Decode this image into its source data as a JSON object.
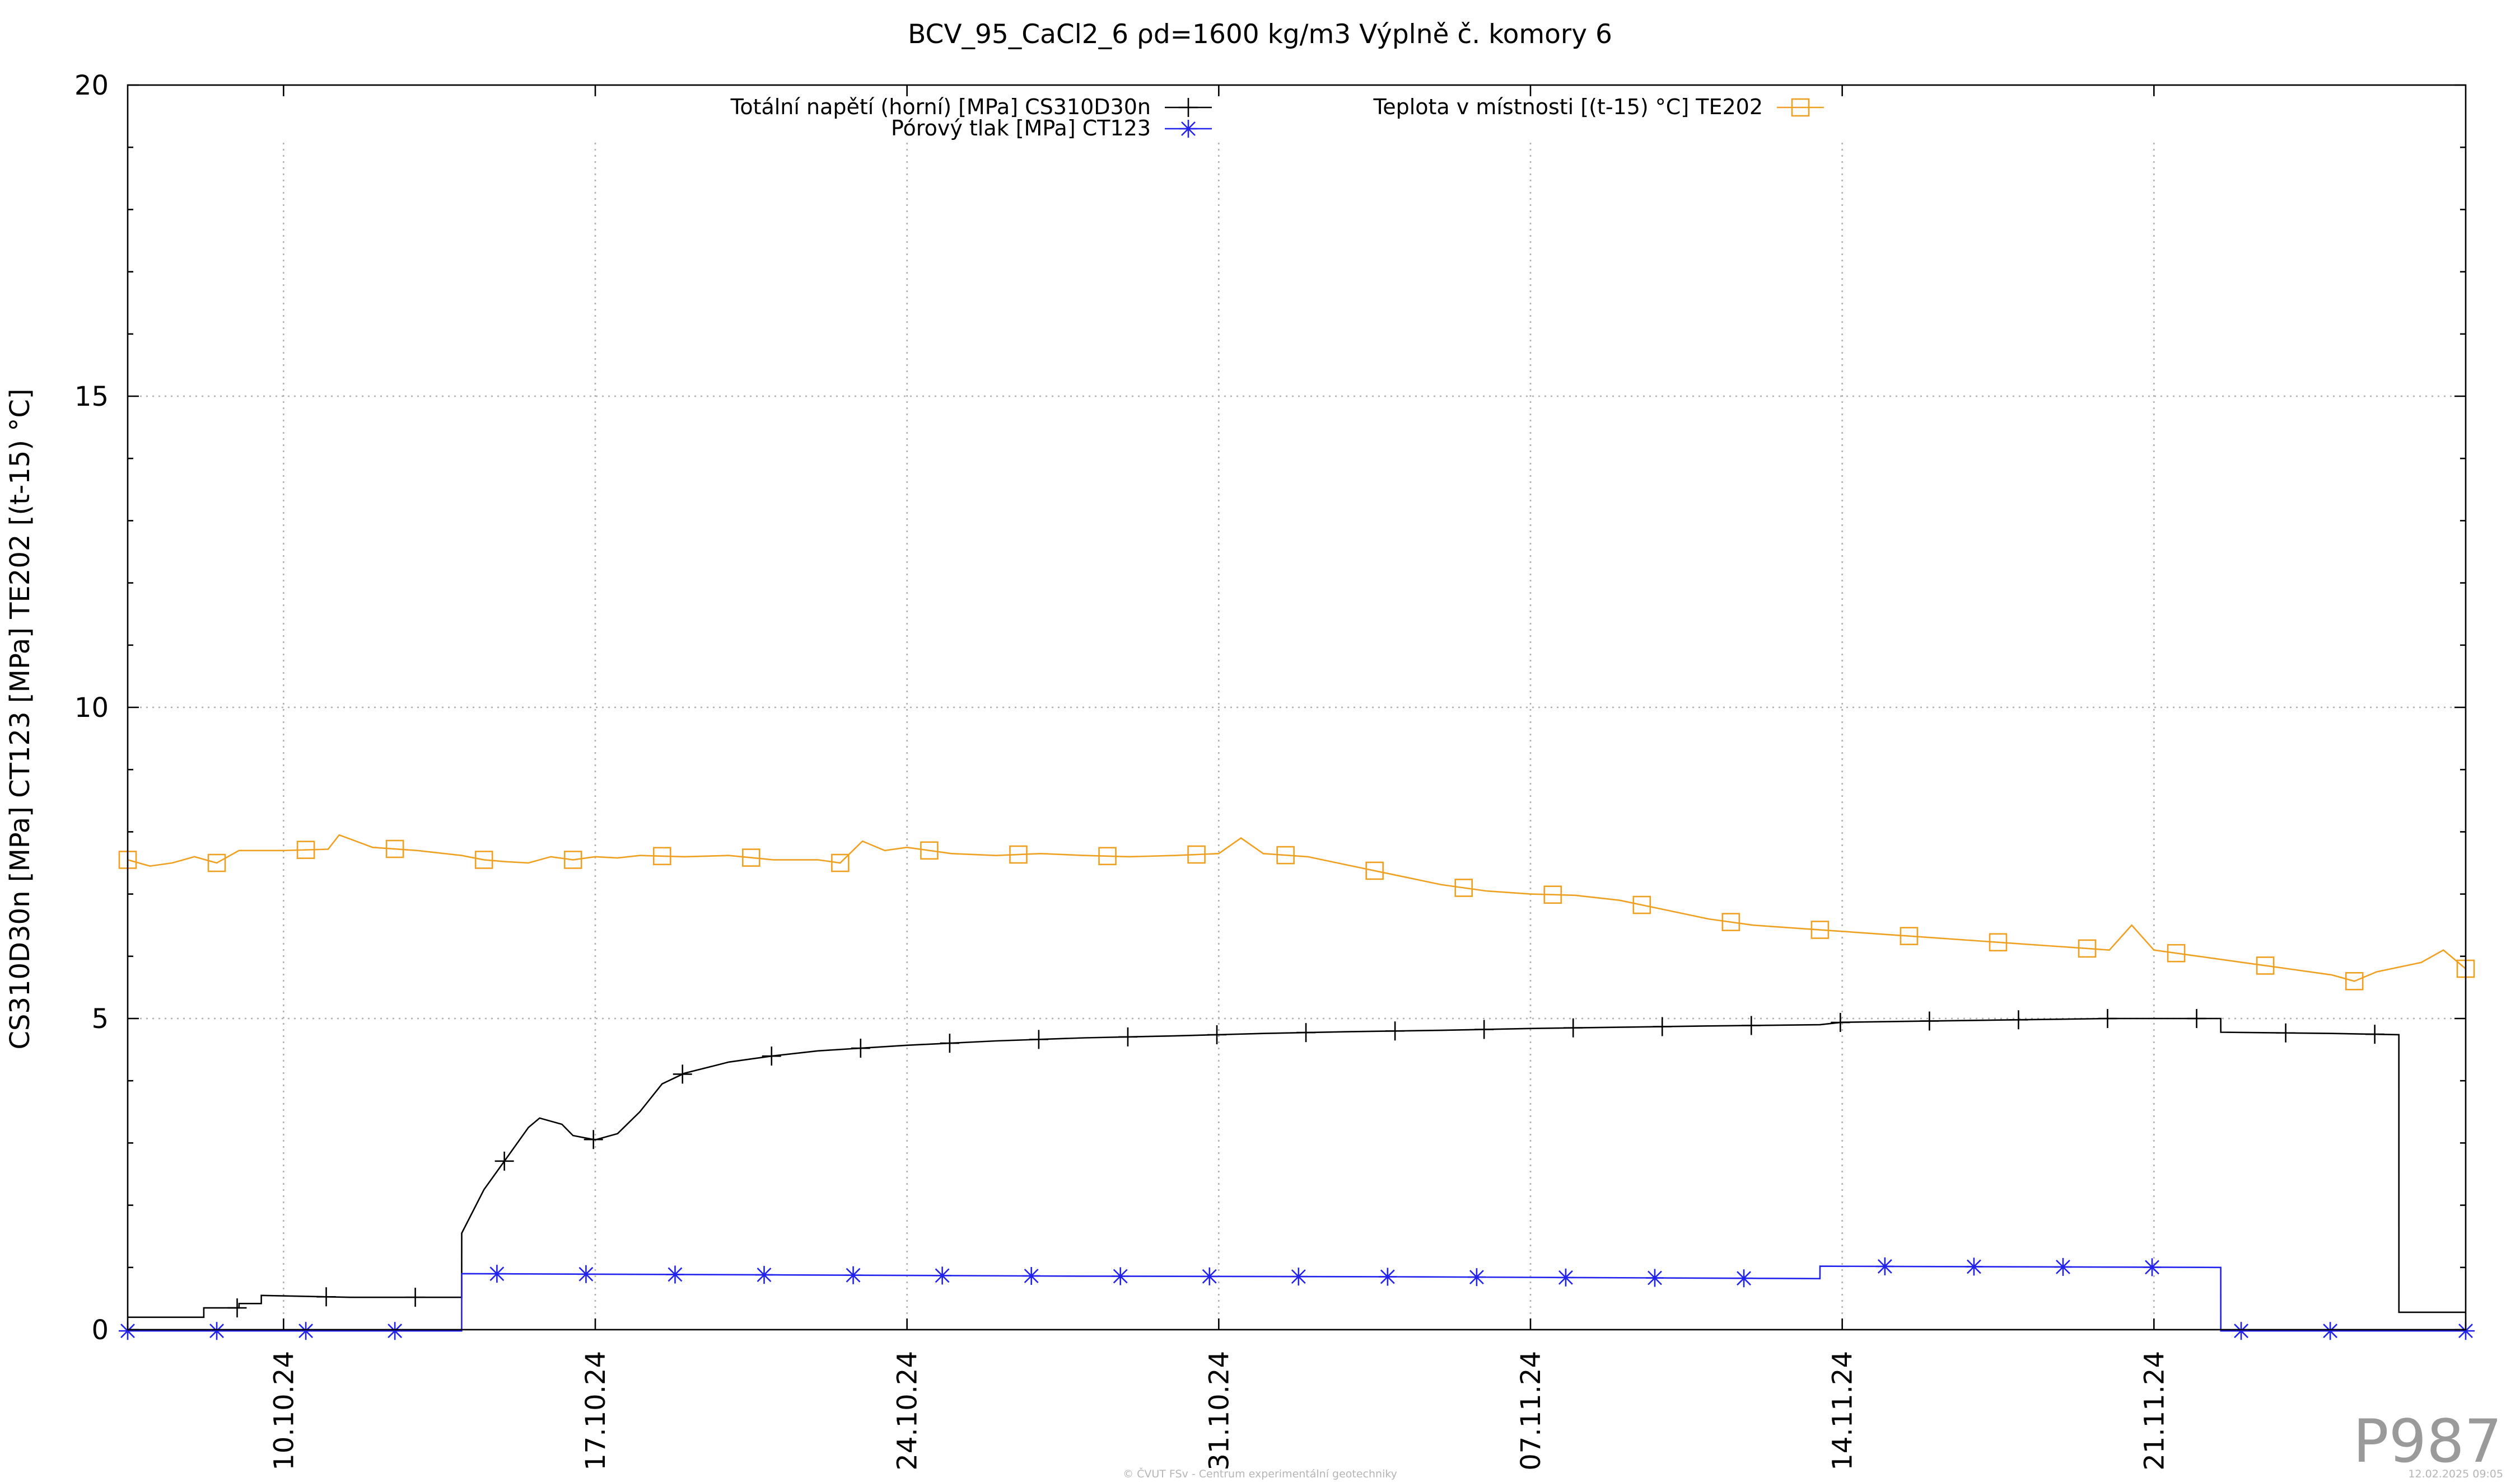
{
  "chart_data": {
    "type": "line",
    "title": "BCV_95_CaCl2_6 ρd=1600 kg/m3 Výplně č. komory 6",
    "ylabel": "CS310D30n [MPa] CT123 [MPa] TE202 [(t-15) °C]",
    "xlabel": "",
    "ylim": [
      0,
      20
    ],
    "xlim": [
      "2024-10-06T12:00",
      "2024-11-28T00:00"
    ],
    "y_ticks": [
      0,
      5,
      10,
      15,
      20
    ],
    "y_tick_labels": [
      "0",
      "5",
      "10",
      "15",
      "20"
    ],
    "x_ticks": [
      "2024-10-10",
      "2024-10-17",
      "2024-10-24",
      "2024-10-31",
      "2024-11-07",
      "2024-11-14",
      "2024-11-21"
    ],
    "x_tick_labels": [
      "10.10.24",
      "17.10.24",
      "24.10.24",
      "31.10.24",
      "07.11.24",
      "14.11.24",
      "21.11.24"
    ],
    "grid": true,
    "legend_position": "top",
    "series": [
      {
        "name": "Totální napětí (horní) [MPa] CS310D30n",
        "color": "#000000",
        "marker": "plus",
        "x": [
          "2024-10-06T12:00",
          "2024-10-08T05:00",
          "2024-10-08T05:01",
          "2024-10-09T00:00",
          "2024-10-09T00:01",
          "2024-10-09T12:00",
          "2024-10-09T12:01",
          "2024-10-11T12:00",
          "2024-10-13T12:00",
          "2024-10-14T00:00",
          "2024-10-14T00:01",
          "2024-10-14T12:00",
          "2024-10-15T00:00",
          "2024-10-15T12:00",
          "2024-10-15T18:00",
          "2024-10-16T06:00",
          "2024-10-16T12:00",
          "2024-10-17T00:00",
          "2024-10-17T12:00",
          "2024-10-18T00:00",
          "2024-10-18T12:00",
          "2024-10-19T00:00",
          "2024-10-20T00:00",
          "2024-10-21T00:00",
          "2024-10-22T00:00",
          "2024-10-24T00:00",
          "2024-10-26T00:00",
          "2024-10-28T00:00",
          "2024-10-30T00:00",
          "2024-11-01T00:00",
          "2024-11-03T00:00",
          "2024-11-05T00:00",
          "2024-11-07T00:00",
          "2024-11-09T00:00",
          "2024-11-11T00:00",
          "2024-11-13T12:00",
          "2024-11-14T00:00",
          "2024-11-16T00:00",
          "2024-11-18T00:00",
          "2024-11-20T00:00",
          "2024-11-22T12:00",
          "2024-11-22T12:01",
          "2024-11-25T00:00",
          "2024-11-25T00:01",
          "2024-11-26T12:00",
          "2024-11-26T12:01",
          "2024-11-28T00:00"
        ],
        "y": [
          0.2,
          0.2,
          0.35,
          0.35,
          0.42,
          0.42,
          0.55,
          0.52,
          0.52,
          0.52,
          1.55,
          2.25,
          2.75,
          3.25,
          3.4,
          3.3,
          3.12,
          3.05,
          3.15,
          3.5,
          3.95,
          4.12,
          4.3,
          4.4,
          4.48,
          4.57,
          4.64,
          4.69,
          4.72,
          4.76,
          4.79,
          4.81,
          4.84,
          4.86,
          4.88,
          4.9,
          4.94,
          4.96,
          4.98,
          5.0,
          5.0,
          4.78,
          4.76,
          4.76,
          4.74,
          0.28,
          0.28
        ],
        "marker_x": [
          "2024-10-08T23:00",
          "2024-10-10T23:00",
          "2024-10-12T23:00",
          "2024-10-14T23:00",
          "2024-10-16T23:00",
          "2024-10-18T23:00",
          "2024-10-20T23:00",
          "2024-10-22T23:00",
          "2024-10-24T23:00",
          "2024-10-26T23:00",
          "2024-10-28T23:00",
          "2024-10-30T23:00",
          "2024-11-01T23:00",
          "2024-11-03T23:00",
          "2024-11-05T23:00",
          "2024-11-07T23:00",
          "2024-11-09T23:00",
          "2024-11-11T23:00",
          "2024-11-13T23:00",
          "2024-11-15T23:00",
          "2024-11-17T23:00",
          "2024-11-19T23:00",
          "2024-11-21T23:00",
          "2024-11-23T23:00",
          "2024-11-25T23:00"
        ]
      },
      {
        "name": "Pórový tlak [MPa] CT123",
        "color": "#2222ee",
        "marker": "star",
        "x": [
          "2024-10-06T12:00",
          "2024-10-14T00:00",
          "2024-10-14T00:01",
          "2024-10-21T00:00",
          "2024-10-28T00:00",
          "2024-11-04T00:00",
          "2024-11-13T12:00",
          "2024-11-13T12:01",
          "2024-11-22T12:00",
          "2024-11-22T12:01",
          "2024-11-28T00:00"
        ],
        "y": [
          -0.02,
          -0.02,
          0.9,
          0.88,
          0.86,
          0.85,
          0.82,
          1.02,
          1.0,
          -0.02,
          -0.02
        ],
        "marker_x": [
          "2024-10-06T12:00",
          "2024-10-08T12:00",
          "2024-10-10T12:00",
          "2024-10-12T12:00",
          "2024-10-14T19:00",
          "2024-10-16T19:00",
          "2024-10-18T19:00",
          "2024-10-20T19:00",
          "2024-10-22T19:00",
          "2024-10-24T19:00",
          "2024-10-26T19:00",
          "2024-10-28T19:00",
          "2024-10-30T19:00",
          "2024-11-01T19:00",
          "2024-11-03T19:00",
          "2024-11-05T19:00",
          "2024-11-07T19:00",
          "2024-11-09T19:00",
          "2024-11-11T19:00",
          "2024-11-14T23:00",
          "2024-11-16T23:00",
          "2024-11-18T23:00",
          "2024-11-20T23:00",
          "2024-11-22T23:00",
          "2024-11-24T23:00",
          "2024-11-28T00:00"
        ]
      },
      {
        "name": "Teplota v místnosti [(t-15) °C] TE202",
        "color": "#f0a020",
        "marker": "square",
        "x": [
          "2024-10-06T12:00",
          "2024-10-07T00:00",
          "2024-10-07T12:00",
          "2024-10-08T00:00",
          "2024-10-08T12:00",
          "2024-10-09T00:00",
          "2024-10-10T00:00",
          "2024-10-11T00:00",
          "2024-10-11T06:00",
          "2024-10-12T00:00",
          "2024-10-13T00:00",
          "2024-10-14T00:00",
          "2024-10-14T12:00",
          "2024-10-15T00:00",
          "2024-10-15T12:00",
          "2024-10-16T00:00",
          "2024-10-16T12:00",
          "2024-10-17T00:00",
          "2024-10-17T12:00",
          "2024-10-18T00:00",
          "2024-10-19T00:00",
          "2024-10-20T00:00",
          "2024-10-21T00:00",
          "2024-10-22T00:00",
          "2024-10-22T12:00",
          "2024-10-23T00:00",
          "2024-10-23T12:00",
          "2024-10-24T00:00",
          "2024-10-25T00:00",
          "2024-10-26T00:00",
          "2024-10-27T00:00",
          "2024-10-28T00:00",
          "2024-10-29T00:00",
          "2024-10-30T00:00",
          "2024-10-31T00:00",
          "2024-10-31T12:00",
          "2024-11-01T00:00",
          "2024-11-02T00:00",
          "2024-11-03T00:00",
          "2024-11-04T00:00",
          "2024-11-05T00:00",
          "2024-11-06T00:00",
          "2024-11-07T00:00",
          "2024-11-08T00:00",
          "2024-11-09T00:00",
          "2024-11-10T00:00",
          "2024-11-11T00:00",
          "2024-11-12T00:00",
          "2024-11-13T00:00",
          "2024-11-14T00:00",
          "2024-11-15T00:00",
          "2024-11-16T00:00",
          "2024-11-17T00:00",
          "2024-11-18T00:00",
          "2024-11-19T00:00",
          "2024-11-20T00:00",
          "2024-11-20T12:00",
          "2024-11-21T00:00",
          "2024-11-22T00:00",
          "2024-11-23T00:00",
          "2024-11-24T00:00",
          "2024-11-25T00:00",
          "2024-11-25T12:00",
          "2024-11-26T00:00",
          "2024-11-27T00:00",
          "2024-11-27T12:00",
          "2024-11-28T00:00"
        ],
        "y": [
          7.55,
          7.45,
          7.5,
          7.6,
          7.5,
          7.7,
          7.7,
          7.72,
          7.95,
          7.75,
          7.7,
          7.62,
          7.55,
          7.52,
          7.5,
          7.6,
          7.55,
          7.6,
          7.58,
          7.62,
          7.6,
          7.62,
          7.55,
          7.55,
          7.5,
          7.85,
          7.7,
          7.75,
          7.65,
          7.62,
          7.65,
          7.62,
          7.6,
          7.62,
          7.65,
          7.9,
          7.65,
          7.6,
          7.45,
          7.3,
          7.15,
          7.05,
          7.0,
          6.98,
          6.9,
          6.75,
          6.6,
          6.5,
          6.45,
          6.4,
          6.35,
          6.3,
          6.25,
          6.2,
          6.15,
          6.1,
          6.5,
          6.1,
          6.0,
          5.9,
          5.8,
          5.7,
          5.6,
          5.75,
          5.9,
          6.1,
          5.8
        ],
        "marker_x": [
          "2024-10-06T12:00",
          "2024-10-08T12:00",
          "2024-10-10T12:00",
          "2024-10-12T12:00",
          "2024-10-14T12:00",
          "2024-10-16T12:00",
          "2024-10-18T12:00",
          "2024-10-20T12:00",
          "2024-10-22T12:00",
          "2024-10-24T12:00",
          "2024-10-26T12:00",
          "2024-10-28T12:00",
          "2024-10-30T12:00",
          "2024-11-01T12:00",
          "2024-11-03T12:00",
          "2024-11-05T12:00",
          "2024-11-07T12:00",
          "2024-11-09T12:00",
          "2024-11-11T12:00",
          "2024-11-13T12:00",
          "2024-11-15T12:00",
          "2024-11-17T12:00",
          "2024-11-19T12:00",
          "2024-11-21T12:00",
          "2024-11-23T12:00",
          "2024-11-25T12:00",
          "2024-11-28T00:00"
        ]
      }
    ]
  },
  "watermark": "P987",
  "footer": {
    "credit": "© ČVUT FSv - Centrum experimentální geotechniky",
    "timestamp": "12.02.2025 09:05"
  }
}
